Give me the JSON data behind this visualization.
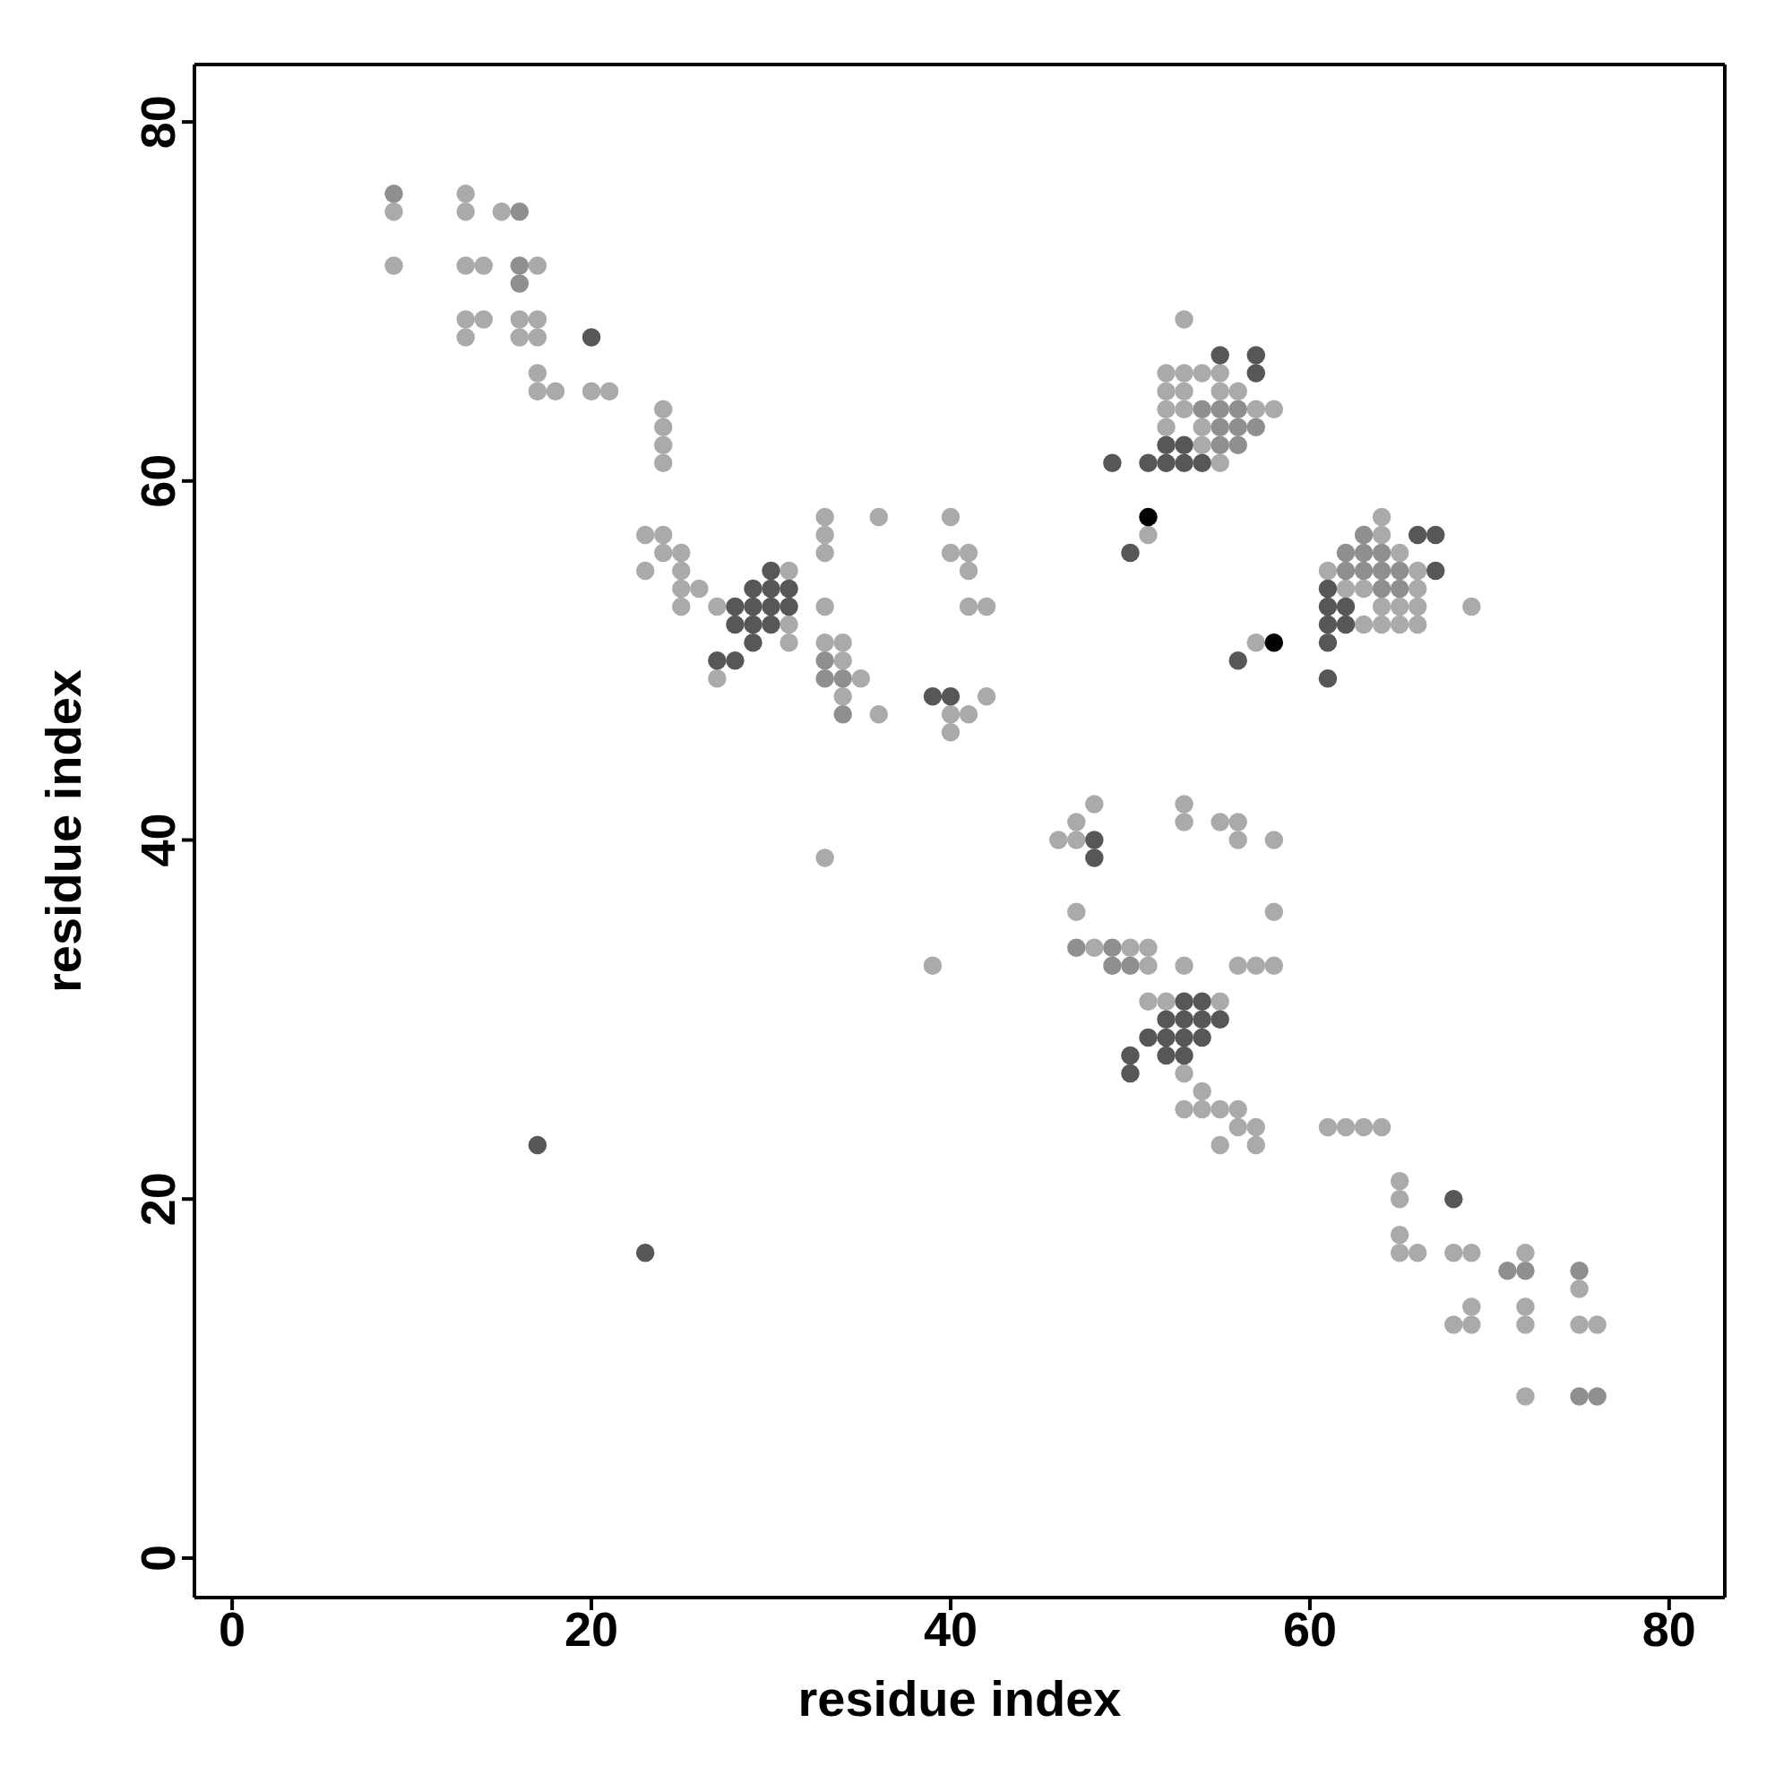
{
  "chart_data": {
    "type": "scatter",
    "xlabel": "residue index",
    "ylabel": "residue index",
    "xlim": [
      -2.1,
      83.1
    ],
    "ylim": [
      -2.2,
      83.2
    ],
    "xticks": [
      0,
      20,
      40,
      60,
      80
    ],
    "yticks": [
      0,
      20,
      40,
      60,
      80
    ],
    "marker": "circle",
    "series": [
      {
        "color": "#aaaaaa",
        "x": [
          9,
          9,
          13,
          13,
          13,
          13,
          13,
          14,
          14,
          15,
          16,
          16,
          17,
          17,
          17,
          17,
          17,
          18,
          20,
          21,
          23,
          23,
          24,
          24,
          24,
          24,
          24,
          24,
          25,
          25,
          25,
          25,
          26,
          27,
          27,
          31,
          31,
          31,
          33,
          33,
          33,
          33,
          33,
          33,
          34,
          34,
          34,
          35,
          36,
          36,
          39,
          40,
          40,
          40,
          40,
          41,
          41,
          41,
          41,
          42,
          42,
          46,
          47,
          47,
          47,
          48,
          48,
          50,
          51,
          51,
          51,
          51,
          52,
          52,
          52,
          52,
          52,
          53,
          53,
          53,
          53,
          53,
          53,
          53,
          53,
          53,
          54,
          54,
          54,
          54,
          54,
          55,
          55,
          55,
          55,
          55,
          55,
          55,
          56,
          56,
          56,
          56,
          56,
          56,
          57,
          57,
          57,
          57,
          57,
          58,
          58,
          58,
          58,
          61,
          61,
          62,
          62,
          63,
          63,
          63,
          64,
          64,
          64,
          64,
          64,
          65,
          65,
          65,
          65,
          65,
          65,
          65,
          66,
          66,
          66,
          66,
          66,
          68,
          68,
          69,
          69,
          69,
          69,
          72,
          72,
          72,
          72,
          75,
          75,
          76
        ],
        "values": [
          75,
          72,
          76,
          75,
          72,
          69,
          68,
          72,
          69,
          75,
          69,
          68,
          72,
          69,
          68,
          66,
          65,
          65,
          65,
          65,
          57,
          55,
          64,
          63,
          62,
          61,
          57,
          56,
          56,
          55,
          54,
          53,
          54,
          53,
          49,
          55,
          52,
          51,
          58,
          57,
          56,
          53,
          51,
          39,
          51,
          50,
          48,
          49,
          58,
          47,
          33,
          58,
          56,
          47,
          46,
          56,
          55,
          53,
          47,
          53,
          48,
          40,
          41,
          40,
          36,
          42,
          34,
          34,
          57,
          34,
          33,
          31,
          66,
          65,
          64,
          63,
          31,
          69,
          66,
          65,
          64,
          42,
          41,
          33,
          27,
          25,
          66,
          63,
          62,
          26,
          25,
          66,
          65,
          61,
          41,
          31,
          25,
          23,
          65,
          41,
          40,
          33,
          25,
          24,
          64,
          51,
          33,
          24,
          23,
          64,
          40,
          36,
          33,
          55,
          24,
          54,
          24,
          54,
          52,
          24,
          58,
          57,
          53,
          52,
          24,
          56,
          53,
          52,
          21,
          20,
          18,
          17,
          55,
          54,
          53,
          52,
          17,
          17,
          13,
          53,
          17,
          14,
          13,
          17,
          14,
          13,
          9,
          15,
          13,
          13
        ]
      },
      {
        "color": "#8f8f8f",
        "x": [
          9,
          16,
          16,
          16,
          33,
          33,
          34,
          34,
          47,
          49,
          49,
          50,
          54,
          55,
          56,
          55,
          56,
          57,
          55,
          56,
          63,
          62,
          63,
          64,
          62,
          63,
          64,
          65,
          64,
          65,
          71,
          72,
          75,
          75,
          76
        ],
        "values": [
          76,
          75,
          72,
          71,
          50,
          49,
          49,
          47,
          34,
          34,
          33,
          33,
          64,
          64,
          64,
          63,
          63,
          63,
          62,
          62,
          57,
          56,
          56,
          56,
          55,
          55,
          55,
          55,
          54,
          54,
          16,
          16,
          16,
          9,
          9
        ]
      },
      {
        "color": "#575757",
        "x": [
          17,
          20,
          23,
          27,
          28,
          28,
          28,
          29,
          29,
          29,
          29,
          30,
          30,
          30,
          30,
          31,
          31,
          39,
          40,
          48,
          48,
          49,
          50,
          50,
          50,
          51,
          51,
          52,
          52,
          52,
          52,
          52,
          53,
          53,
          53,
          53,
          53,
          53,
          54,
          54,
          54,
          54,
          55,
          55,
          56,
          57,
          57,
          61,
          61,
          61,
          61,
          61,
          62,
          62,
          66,
          67,
          67,
          68
        ],
        "values": [
          23,
          68,
          17,
          50,
          53,
          52,
          50,
          54,
          53,
          52,
          51,
          55,
          54,
          53,
          52,
          54,
          53,
          48,
          48,
          40,
          39,
          61,
          56,
          28,
          27,
          61,
          29,
          62,
          61,
          30,
          29,
          28,
          62,
          61,
          31,
          30,
          29,
          28,
          61,
          31,
          30,
          29,
          67,
          30,
          50,
          67,
          66,
          54,
          53,
          52,
          51,
          49,
          53,
          52,
          57,
          57,
          55,
          20
        ]
      },
      {
        "color": "#000000",
        "x": [
          51,
          58
        ],
        "values": [
          58,
          51
        ]
      }
    ]
  }
}
